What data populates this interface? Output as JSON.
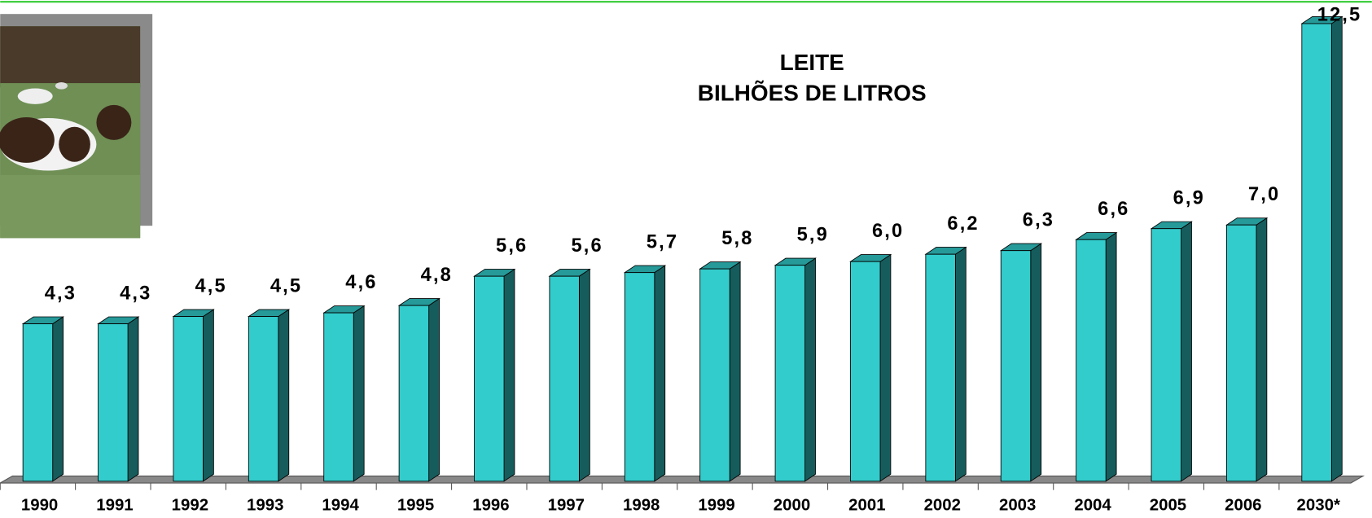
{
  "chart_data": {
    "type": "bar3d",
    "title": [
      "LEITE",
      "BILHÕES DE LITROS"
    ],
    "categories": [
      "1990",
      "1991",
      "1992",
      "1993",
      "1994",
      "1995",
      "1996",
      "1997",
      "1998",
      "1999",
      "2000",
      "2001",
      "2002",
      "2003",
      "2004",
      "2005",
      "2006",
      "2030*"
    ],
    "values": [
      4.3,
      4.3,
      4.5,
      4.5,
      4.6,
      4.8,
      5.6,
      5.6,
      5.7,
      5.8,
      5.9,
      6.0,
      6.2,
      6.3,
      6.6,
      6.9,
      7.0,
      12.5
    ],
    "value_labels": [
      "4,3",
      "4,3",
      "4,5",
      "4,5",
      "4,6",
      "4,8",
      "5,6",
      "5,6",
      "5,7",
      "5,8",
      "5,9",
      "6,0",
      "6,2",
      "6,3",
      "6,6",
      "6,9",
      "7,0",
      "12,5"
    ],
    "color": "#33cccc",
    "ylim": [
      0,
      12.5
    ]
  }
}
